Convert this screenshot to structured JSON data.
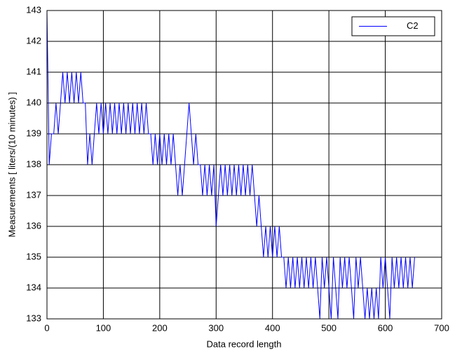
{
  "chart_data": {
    "type": "line",
    "x_label": "Data record length",
    "y_label": "Measurements [ liters/(10 minutes) ]",
    "x": [
      0,
      4,
      8,
      12,
      16,
      20,
      24,
      28,
      32,
      36,
      40,
      44,
      48,
      52,
      56,
      60,
      64,
      68,
      72,
      76,
      80,
      84,
      88,
      92,
      96,
      100,
      104,
      108,
      112,
      116,
      120,
      124,
      128,
      132,
      136,
      140,
      144,
      148,
      152,
      156,
      160,
      164,
      168,
      172,
      176,
      180,
      184,
      188,
      192,
      196,
      200,
      204,
      208,
      212,
      216,
      220,
      224,
      228,
      232,
      236,
      240,
      244,
      248,
      252,
      256,
      260,
      264,
      268,
      272,
      276,
      280,
      284,
      288,
      292,
      296,
      300,
      304,
      308,
      312,
      316,
      320,
      324,
      328,
      332,
      336,
      340,
      344,
      348,
      352,
      356,
      360,
      364,
      368,
      372,
      376,
      380,
      384,
      388,
      392,
      396,
      400,
      404,
      408,
      412,
      416,
      420,
      424,
      428,
      432,
      436,
      440,
      444,
      448,
      452,
      456,
      460,
      464,
      468,
      472,
      476,
      480,
      484,
      488,
      492,
      496,
      500,
      504,
      508,
      512,
      516,
      520,
      524,
      528,
      532,
      536,
      540,
      544,
      548,
      552,
      556,
      560,
      564,
      568,
      572,
      576,
      580,
      584,
      588,
      592,
      596,
      600,
      604,
      608,
      612,
      616,
      620,
      624,
      628,
      632,
      636,
      640,
      644,
      648,
      652
    ],
    "series": [
      {
        "name": "C2",
        "color": "#0000ff",
        "values": [
          143,
          138,
          139,
          139,
          140,
          139,
          140,
          141,
          140,
          141,
          140,
          141,
          140,
          141,
          140,
          141,
          140,
          140,
          138,
          139,
          138,
          139,
          140,
          139,
          140,
          139,
          140,
          139,
          140,
          139,
          140,
          139,
          140,
          139,
          140,
          139,
          140,
          139,
          140,
          139,
          140,
          139,
          140,
          139,
          140,
          139,
          139,
          138,
          139,
          138,
          139,
          138,
          139,
          138,
          139,
          138,
          139,
          138,
          137,
          138,
          137,
          138,
          139,
          140,
          139,
          138,
          139,
          138,
          138,
          137,
          138,
          137,
          138,
          137,
          138,
          136,
          137,
          138,
          137,
          138,
          137,
          138,
          137,
          138,
          137,
          138,
          137,
          138,
          137,
          138,
          137,
          138,
          137,
          136,
          137,
          136,
          135,
          136,
          135,
          136,
          135,
          136,
          135,
          136,
          135,
          135,
          134,
          135,
          134,
          135,
          134,
          135,
          134,
          135,
          134,
          135,
          134,
          135,
          134,
          135,
          134,
          133,
          135,
          134,
          135,
          134,
          133,
          135,
          134,
          133,
          135,
          134,
          135,
          134,
          135,
          134,
          133,
          135,
          134,
          135,
          134,
          133,
          134,
          133,
          134,
          133,
          134,
          133,
          135,
          134,
          135,
          134,
          133,
          135,
          134,
          135,
          134,
          135,
          134,
          135,
          134,
          135,
          134,
          135
        ]
      }
    ],
    "xlim": [
      0,
      700
    ],
    "xticks": [
      0,
      100,
      200,
      300,
      400,
      500,
      600,
      700
    ],
    "ylim": [
      133,
      143
    ],
    "yticks": [
      133,
      134,
      135,
      136,
      137,
      138,
      139,
      140,
      141,
      142,
      143
    ],
    "grid": true,
    "legend": "northeast"
  }
}
